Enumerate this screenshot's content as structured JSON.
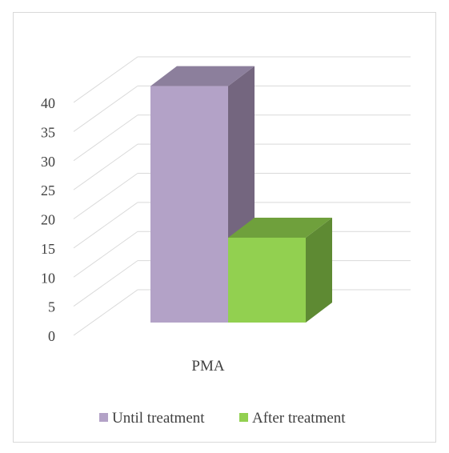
{
  "chart_data": {
    "type": "bar",
    "style": "3d-clustered-column",
    "categories": [
      "PMA"
    ],
    "series": [
      {
        "name": "Until treatment",
        "values": [
          39
        ],
        "color": "#b3a2c7",
        "side_color": "#74667f",
        "top_color": "#8c7f9c"
      },
      {
        "name": "After treatment",
        "values": [
          14
        ],
        "color": "#92d050",
        "side_color": "#5e8a33",
        "top_color": "#6fa03c"
      }
    ],
    "ylim": [
      0,
      40
    ],
    "yticks": [
      "0",
      "5",
      "10",
      "15",
      "20",
      "25",
      "30",
      "35",
      "40"
    ],
    "ytick_values": [
      0,
      5,
      10,
      15,
      20,
      25,
      30,
      35,
      40
    ],
    "grid": true,
    "legend_position": "bottom",
    "gridline_color": "#d9d9d9"
  }
}
